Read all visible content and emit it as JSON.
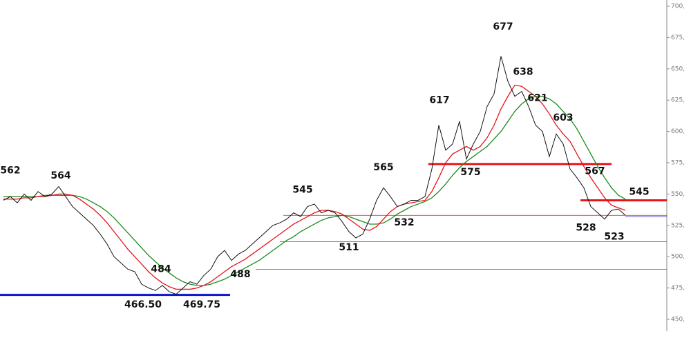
{
  "chart_data": {
    "type": "line",
    "ylim": [
      450,
      700
    ],
    "yticks": [
      {
        "value": 450,
        "label": "450,"
      },
      {
        "value": 475,
        "label": "475,"
      },
      {
        "value": 500,
        "label": "500,"
      },
      {
        "value": 525,
        "label": "525,"
      },
      {
        "value": 550,
        "label": "550,"
      },
      {
        "value": 575,
        "label": "575,"
      },
      {
        "value": 600,
        "label": "600,"
      },
      {
        "value": 625,
        "label": "625,"
      },
      {
        "value": 650,
        "label": "650,"
      },
      {
        "value": 675,
        "label": "675,"
      },
      {
        "value": 700,
        "label": "700,"
      }
    ],
    "series": [
      {
        "color": "#111111",
        "values": [
          545,
          548,
          543,
          550,
          545,
          552,
          548,
          550,
          556,
          548,
          540,
          535,
          530,
          525,
          518,
          510,
          500,
          495,
          490,
          488,
          478,
          475,
          473,
          477,
          472,
          470,
          475,
          480,
          478,
          485,
          490,
          500,
          505,
          497,
          502,
          505,
          510,
          515,
          520,
          525,
          527,
          530,
          535,
          532,
          540,
          542,
          535,
          537,
          535,
          528,
          520,
          515,
          518,
          530,
          545,
          555,
          548,
          540,
          542,
          545,
          545,
          548,
          570,
          605,
          585,
          590,
          608,
          578,
          590,
          600,
          620,
          630,
          660,
          640,
          628,
          632,
          620,
          605,
          600,
          580,
          598,
          590,
          570,
          563,
          555,
          540,
          535,
          530,
          537,
          538,
          533
        ]
      },
      {
        "color": "#e8141a",
        "values": [
          546,
          546,
          546,
          547,
          547,
          548,
          548,
          549,
          550,
          550,
          549,
          546,
          542,
          538,
          533,
          527,
          520,
          513,
          506,
          500,
          494,
          488,
          483,
          479,
          476,
          474,
          474,
          474,
          475,
          477,
          480,
          484,
          488,
          492,
          495,
          498,
          502,
          506,
          510,
          514,
          518,
          522,
          526,
          529,
          532,
          535,
          537,
          537,
          536,
          534,
          530,
          526,
          522,
          521,
          524,
          530,
          536,
          540,
          542,
          543,
          544,
          545,
          552,
          563,
          575,
          582,
          585,
          588,
          585,
          588,
          595,
          605,
          618,
          628,
          637,
          636,
          632,
          628,
          622,
          614,
          605,
          598,
          592,
          582,
          572,
          563,
          555,
          547,
          541,
          539,
          537
        ]
      },
      {
        "color": "#1a8a1a",
        "values": [
          548,
          548,
          548,
          548,
          548,
          548,
          549,
          549,
          549,
          549,
          549,
          548,
          546,
          543,
          540,
          536,
          531,
          525,
          519,
          513,
          507,
          501,
          496,
          491,
          487,
          483,
          480,
          478,
          477,
          477,
          478,
          480,
          482,
          485,
          488,
          491,
          494,
          497,
          501,
          505,
          509,
          513,
          516,
          520,
          523,
          526,
          529,
          531,
          532,
          533,
          532,
          530,
          528,
          526,
          526,
          527,
          530,
          534,
          537,
          540,
          542,
          544,
          547,
          552,
          558,
          565,
          571,
          576,
          580,
          584,
          588,
          594,
          600,
          608,
          616,
          622,
          626,
          628,
          628,
          626,
          622,
          616,
          610,
          602,
          592,
          582,
          572,
          563,
          555,
          549,
          546
        ]
      }
    ],
    "levels": [
      {
        "value": 469.5,
        "color": "#0a14d0",
        "width": 3
      },
      {
        "value": 574,
        "color": "#e8141a",
        "width": 3
      },
      {
        "value": 545,
        "color": "#e8141a",
        "width": 3
      },
      {
        "value": 533,
        "color": "#e8141a",
        "width": 0.7
      },
      {
        "value": 512,
        "color": "#e8141a",
        "width": 0.7
      },
      {
        "value": 490,
        "color": "#e8141a",
        "width": 0.7
      },
      {
        "value": 532,
        "color": "#3030c0",
        "width": 0.7
      }
    ],
    "annotations": [
      {
        "label": "562",
        "value": 562
      },
      {
        "label": "564",
        "value": 564
      },
      {
        "label": "484",
        "value": 484
      },
      {
        "label": "466.50",
        "value": 466.5
      },
      {
        "label": "469.75",
        "value": 469.75
      },
      {
        "label": "488",
        "value": 488
      },
      {
        "label": "545",
        "value": 545
      },
      {
        "label": "511",
        "value": 511
      },
      {
        "label": "565",
        "value": 565
      },
      {
        "label": "532",
        "value": 532
      },
      {
        "label": "617",
        "value": 617
      },
      {
        "label": "575",
        "value": 575
      },
      {
        "label": "677",
        "value": 677
      },
      {
        "label": "638",
        "value": 638
      },
      {
        "label": "621",
        "value": 621
      },
      {
        "label": "603",
        "value": 603
      },
      {
        "label": "567",
        "value": 567
      },
      {
        "label": "545",
        "value": 545
      },
      {
        "label": "528",
        "value": 528
      },
      {
        "label": "523",
        "value": 523
      }
    ]
  }
}
